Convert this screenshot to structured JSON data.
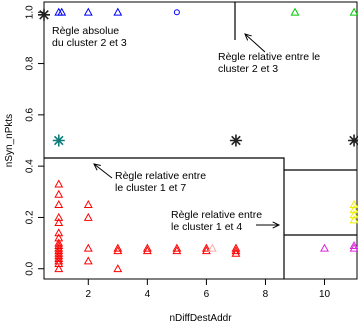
{
  "chart_data": {
    "type": "scatter",
    "title": "",
    "xlabel": "nDiffDestAddr",
    "ylabel": "nSyn_nPkts",
    "xlim": [
      0.5,
      11.1
    ],
    "ylim": [
      -0.04,
      1.04
    ],
    "x_ticks": [
      2,
      4,
      6,
      8,
      10
    ],
    "y_ticks": [
      0.0,
      0.2,
      0.4,
      0.6,
      0.8,
      1.0
    ],
    "x_tick_labels": [
      "2",
      "4",
      "6",
      "8",
      "10"
    ],
    "y_tick_labels": [
      "0.0",
      "0.2",
      "0.4",
      "0.6",
      "0.8",
      "1.0"
    ],
    "grid": false,
    "series": [
      {
        "marker": "triangle",
        "color": "#0000ff",
        "points": [
          [
            1,
            1.0
          ],
          [
            1.1,
            1.0
          ],
          [
            2,
            1.0
          ],
          [
            3,
            1.0
          ]
        ]
      },
      {
        "marker": "circle",
        "color": "#0000ff",
        "points": [
          [
            5,
            1.0
          ]
        ]
      },
      {
        "marker": "triangle",
        "color": "#00cc00",
        "points": [
          [
            9,
            1.0
          ],
          [
            11,
            1.0
          ]
        ]
      },
      {
        "marker": "star",
        "color": "#222222",
        "points": [
          [
            0.5,
            0.99
          ],
          [
            7,
            0.5
          ],
          [
            11,
            0.5
          ]
        ]
      },
      {
        "marker": "star",
        "color": "#0e7a7a",
        "points": [
          [
            1,
            0.5
          ]
        ]
      },
      {
        "marker": "triangle",
        "color": "#ff0000",
        "points": [
          [
            1,
            0.33
          ],
          [
            1,
            0.29
          ],
          [
            1,
            0.25
          ],
          [
            1,
            0.2
          ],
          [
            1,
            0.18
          ],
          [
            1,
            0.14
          ],
          [
            1,
            0.12
          ],
          [
            1,
            0.1
          ],
          [
            1,
            0.09
          ],
          [
            1,
            0.08
          ],
          [
            1,
            0.07
          ],
          [
            1,
            0.06
          ],
          [
            1,
            0.05
          ],
          [
            1,
            0.04
          ],
          [
            1,
            0.03
          ],
          [
            1,
            0.02
          ],
          [
            1,
            0.0
          ],
          [
            2,
            0.25
          ],
          [
            2,
            0.2
          ],
          [
            2,
            0.08
          ],
          [
            2,
            0.03
          ],
          [
            3,
            0.08
          ],
          [
            3,
            0.07
          ],
          [
            3,
            0.0
          ],
          [
            4,
            0.08
          ],
          [
            4,
            0.07
          ],
          [
            5,
            0.08
          ],
          [
            5,
            0.07
          ],
          [
            6,
            0.08
          ],
          [
            6,
            0.07
          ],
          [
            7,
            0.08
          ],
          [
            7,
            0.07
          ],
          [
            7,
            0.06
          ]
        ]
      },
      {
        "marker": "triangle",
        "color": "#ffaaaa",
        "points": [
          [
            6.2,
            0.08
          ]
        ]
      },
      {
        "marker": "triangle",
        "color": "#dd22dd",
        "points": [
          [
            10,
            0.08
          ],
          [
            11,
            0.08
          ],
          [
            11,
            0.09
          ]
        ]
      },
      {
        "marker": "triangle",
        "color": "#eeee00",
        "points": [
          [
            11,
            0.25
          ],
          [
            11,
            0.23
          ],
          [
            11,
            0.21
          ],
          [
            11,
            0.19
          ]
        ]
      }
    ],
    "annotations": [
      {
        "lines": [
          "Règle absolue",
          "du cluster 2 et 3"
        ]
      },
      {
        "lines": [
          "Règle relative entre le",
          "cluster 2 et 3"
        ]
      },
      {
        "lines": [
          "Règle relative entre",
          "le cluster 1 et 7"
        ]
      },
      {
        "lines": [
          "Règle relative entre",
          "le cluster 1 et 4"
        ]
      }
    ]
  },
  "colors": {
    "rule_lines": "#000000",
    "axis": "#000000"
  }
}
